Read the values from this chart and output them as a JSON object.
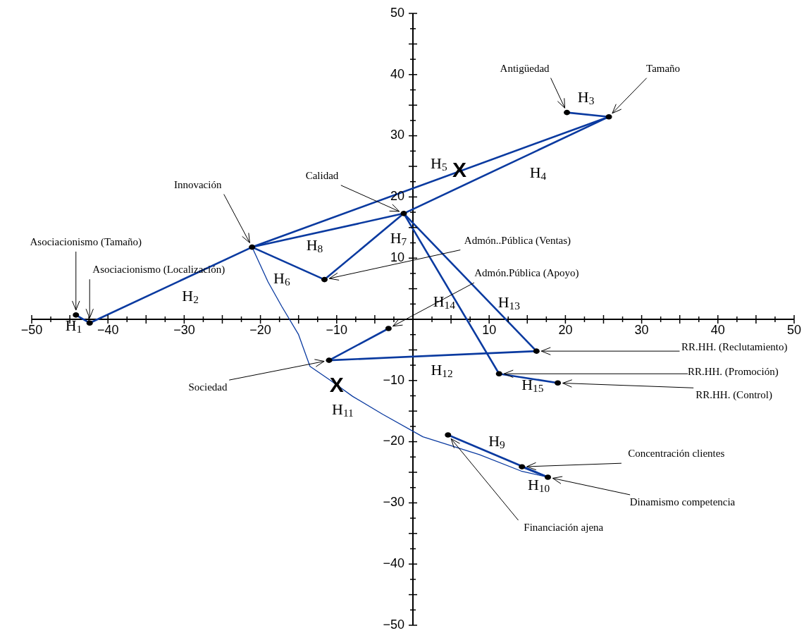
{
  "chart_data": {
    "type": "scatter",
    "xlim": [
      -50,
      50
    ],
    "ylim": [
      -50,
      50
    ],
    "xticks": [
      -50,
      {
        "value": -47.5,
        "label": null
      },
      {
        "value": -45,
        "label": null
      },
      {
        "value": -42.5,
        "label": null
      },
      -40,
      {
        "value": -37.5,
        "label": null
      },
      {
        "value": -35,
        "label": null
      },
      {
        "value": -32.5,
        "label": null
      },
      -30,
      {
        "value": -27.5,
        "label": null
      },
      {
        "value": -25,
        "label": null
      },
      {
        "value": -22.5,
        "label": null
      },
      -20,
      {
        "value": -17.5,
        "label": null
      },
      {
        "value": -15,
        "label": null
      },
      {
        "value": -12.5,
        "label": null
      },
      -10,
      {
        "value": -7.5,
        "label": null
      },
      {
        "value": -5,
        "label": null
      },
      {
        "value": -2.5,
        "label": null
      },
      {
        "value": 0,
        "label": null
      },
      {
        "value": 2.5,
        "label": null
      },
      {
        "value": 5,
        "label": null
      },
      {
        "value": 7.5,
        "label": null
      },
      10,
      {
        "value": 12.5,
        "label": null
      },
      {
        "value": 15,
        "label": null
      },
      {
        "value": 17.5,
        "label": null
      },
      20,
      {
        "value": 22.5,
        "label": null
      },
      {
        "value": 25,
        "label": null
      },
      {
        "value": 27.5,
        "label": null
      },
      30,
      {
        "value": 32.5,
        "label": null
      },
      {
        "value": 35,
        "label": null
      },
      {
        "value": 37.5,
        "label": null
      },
      40,
      {
        "value": 42.5,
        "label": null
      },
      {
        "value": 45,
        "label": null
      },
      {
        "value": 47.5,
        "label": null
      },
      50
    ],
    "yticks": [
      -50,
      {
        "value": -47.5,
        "label": null
      },
      {
        "value": -45,
        "label": null
      },
      {
        "value": -42.5,
        "label": null
      },
      -40,
      {
        "value": -37.5,
        "label": null
      },
      {
        "value": -35,
        "label": null
      },
      {
        "value": -32.5,
        "label": null
      },
      -30,
      {
        "value": -27.5,
        "label": null
      },
      {
        "value": -25,
        "label": null
      },
      {
        "value": -22.5,
        "label": null
      },
      -20,
      {
        "value": -17.5,
        "label": null
      },
      {
        "value": -15,
        "label": null
      },
      {
        "value": -12.5,
        "label": null
      },
      -10,
      {
        "value": -7.5,
        "label": null
      },
      {
        "value": -5,
        "label": null
      },
      {
        "value": -2.5,
        "label": null
      },
      {
        "value": 0,
        "label": null
      },
      {
        "value": 2.5,
        "label": null
      },
      {
        "value": 5,
        "label": null
      },
      {
        "value": 7.5,
        "label": null
      },
      10,
      {
        "value": 12.5,
        "label": null
      },
      {
        "value": 15,
        "label": null
      },
      {
        "value": 17.5,
        "label": null
      },
      20,
      {
        "value": 22.5,
        "label": null
      },
      {
        "value": 25,
        "label": null
      },
      {
        "value": 27.5,
        "label": null
      },
      30,
      {
        "value": 32.5,
        "label": null
      },
      {
        "value": 35,
        "label": null
      },
      {
        "value": 37.5,
        "label": null
      },
      40,
      {
        "value": 42.5,
        "label": null
      },
      {
        "value": 45,
        "label": null
      },
      {
        "value": 47.5,
        "label": null
      },
      50
    ],
    "grid": false,
    "legend": false,
    "marker": "circle",
    "series": [
      {
        "type": "scatter",
        "color": "#000000",
        "x": [
          -44.2,
          -42.4,
          -21.1,
          -1.2,
          -11.6,
          -3.2,
          -11.0,
          16.2,
          11.3,
          19.0,
          4.6,
          14.3,
          17.7,
          20.2,
          25.7
        ],
        "values": [
          0.7,
          -0.6,
          11.8,
          17.3,
          6.5,
          -1.5,
          -6.7,
          -5.2,
          -8.9,
          -10.4,
          -18.9,
          -24.1,
          -25.8,
          33.8,
          33.1
        ]
      },
      {
        "type": "line",
        "marker": "none",
        "color": "#0a3aa0",
        "x": [
          -44.2,
          -42.4
        ],
        "values": [
          0.7,
          -0.6
        ]
      },
      {
        "type": "line",
        "marker": "none",
        "color": "#0a3aa0",
        "x": [
          -42.4,
          -21.1
        ],
        "values": [
          -0.6,
          11.8
        ]
      },
      {
        "type": "line",
        "marker": "none",
        "color": "#0a3aa0",
        "x": [
          -21.1,
          -1.2
        ],
        "values": [
          11.8,
          17.3
        ]
      },
      {
        "type": "line",
        "marker": "none",
        "color": "#0a3aa0",
        "x": [
          -21.1,
          -11.6
        ],
        "values": [
          11.8,
          6.5
        ]
      },
      {
        "type": "line",
        "marker": "none",
        "color": "#0a3aa0",
        "x": [
          -11.6,
          -1.2
        ],
        "values": [
          6.5,
          17.3
        ]
      },
      {
        "type": "line",
        "marker": "none",
        "color": "#0a3aa0",
        "x": [
          -1.2,
          25.7
        ],
        "values": [
          17.3,
          33.1
        ]
      },
      {
        "type": "line",
        "marker": "none",
        "color": "#0a3aa0",
        "x": [
          -21.1,
          25.7
        ],
        "values": [
          11.8,
          33.1
        ]
      },
      {
        "type": "line",
        "marker": "none",
        "color": "#0a3aa0",
        "x": [
          20.2,
          25.7
        ],
        "values": [
          33.8,
          33.1
        ]
      },
      {
        "type": "line",
        "marker": "none",
        "color": "#0a3aa0",
        "x": [
          -1.2,
          16.2
        ],
        "values": [
          17.3,
          -5.2
        ]
      },
      {
        "type": "line",
        "marker": "none",
        "color": "#0a3aa0",
        "x": [
          -1.2,
          11.3
        ],
        "values": [
          17.3,
          -8.9
        ]
      },
      {
        "type": "line",
        "marker": "none",
        "color": "#0a3aa0",
        "x": [
          11.3,
          19.0
        ],
        "values": [
          -8.9,
          -10.4
        ]
      },
      {
        "type": "line",
        "marker": "none",
        "color": "#0a3aa0",
        "x": [
          -11.0,
          16.2
        ],
        "values": [
          -6.7,
          -5.2
        ]
      },
      {
        "type": "line",
        "marker": "none",
        "color": "#0a3aa0",
        "x": [
          -11.0,
          -3.2
        ],
        "values": [
          -6.7,
          -1.5
        ]
      },
      {
        "type": "line",
        "marker": "none",
        "color": "#0a3aa0",
        "x": [
          4.6,
          17.7
        ],
        "values": [
          -18.9,
          -25.8
        ]
      },
      {
        "type": "line",
        "marker": "none",
        "color": "#0a3aa0",
        "x": [
          14.3,
          17.7
        ],
        "values": [
          -24.1,
          -25.8
        ]
      },
      {
        "type": "line",
        "marker": "none",
        "color": "#0a3aa0",
        "x": [
          -21.1,
          -19.0,
          -17.2,
          -15.0,
          -13.5,
          -10.8,
          -7.9,
          -4.0,
          1.3,
          8.7,
          14.2,
          17.7
        ],
        "values": [
          11.8,
          6.1,
          2.1,
          -2.5,
          -7.7,
          -10.0,
          -12.6,
          -15.5,
          -19.2,
          -22.1,
          -24.8,
          -25.8
        ]
      }
    ],
    "annotations": [
      {
        "text": "Asociacionismo (Tamaño)",
        "x": -44.2,
        "y": 0.7
      },
      {
        "text": "Asociacionismo (Localización)",
        "x": -42.4,
        "y": -0.6
      },
      {
        "text": "Innovación",
        "x": -21.1,
        "y": 11.8
      },
      {
        "text": "Calidad",
        "x": -1.2,
        "y": 17.3
      },
      {
        "text": "Admón..Pública (Ventas)",
        "x": -11.6,
        "y": 6.5
      },
      {
        "text": "Admón.Pública (Apoyo)",
        "x": -3.2,
        "y": -1.5
      },
      {
        "text": "Sociedad",
        "x": -11.0,
        "y": -6.7
      },
      {
        "text": "RR.HH. (Reclutamiento)",
        "x": 16.2,
        "y": -5.2
      },
      {
        "text": "RR.HH. (Promoción)",
        "x": 11.3,
        "y": -8.9
      },
      {
        "text": "RR.HH. (Control)",
        "x": 19.0,
        "y": -10.4
      },
      {
        "text": "Financiación ajena",
        "x": 4.6,
        "y": -18.9
      },
      {
        "text": "Concentración clientes",
        "x": 14.3,
        "y": -24.1
      },
      {
        "text": "Dinamismo competencia",
        "x": 17.7,
        "y": -25.8
      },
      {
        "text": "Antigüedad",
        "x": 20.2,
        "y": 33.8
      },
      {
        "text": "Tamaño",
        "x": 25.7,
        "y": 33.1
      },
      "H$_{1}$",
      "H$_{2}$",
      "H$_{3}$",
      "H$_{4}$",
      "H$_{5}$",
      "H$_{6}$",
      "H$_{7}$",
      "H$_{8}$",
      "H$_{9}$",
      "H$_{10}$",
      "H$_{11}$",
      "H$_{12}$",
      "H$_{13}$",
      "H$_{14}$",
      "H$_{15}$",
      "X",
      "X"
    ]
  }
}
